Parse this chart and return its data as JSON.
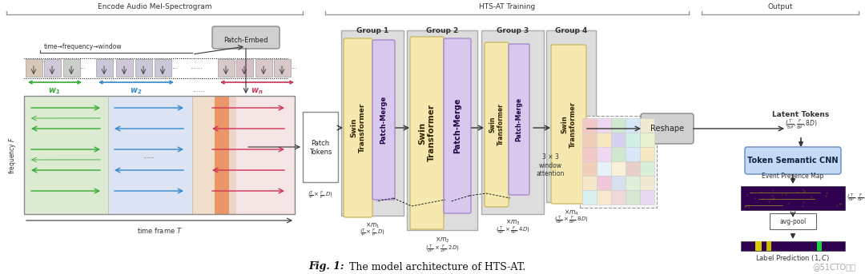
{
  "fig_width": 10.8,
  "fig_height": 3.43,
  "bg_color": "#ffffff",
  "caption_bold": "Fig. 1:",
  "caption_rest": " The model architecture of HTS-AT.",
  "watermark": "@51CTO博客",
  "section_labels": [
    "Encode Audio Mel-Spectrogram",
    "HTS-AT Training",
    "Output"
  ],
  "group_labels": [
    "Group 1",
    "Group 2",
    "Group 3",
    "Group 4"
  ],
  "colors": {
    "swin_yellow": "#f5e9b0",
    "swin_yellow_edge": "#ccbb66",
    "patch_merge_purple": "#d8c8ee",
    "patch_merge_edge": "#aa88cc",
    "group_box_gray": "#dddddd",
    "group_box_edge": "#aaaaaa",
    "patch_embed_gray": "#d0d0d0",
    "reshape_gray": "#d0d0d0",
    "token_cnn_blue": "#c4daf5",
    "token_cnn_edge": "#7799cc",
    "arrow_dark": "#222222",
    "section_bar": "#999999",
    "green_arrow": "#33aa33",
    "blue_arrow": "#3388cc",
    "red_arrow": "#cc3355",
    "spec_green": "#c5ddb5",
    "spec_blue": "#bbc8e8",
    "spec_warm": "#e8c8a8",
    "spec_hot": "#e87840",
    "purple_dark": "#300050",
    "yellow_mark": "#ddcc00",
    "green_mark": "#22cc44"
  }
}
